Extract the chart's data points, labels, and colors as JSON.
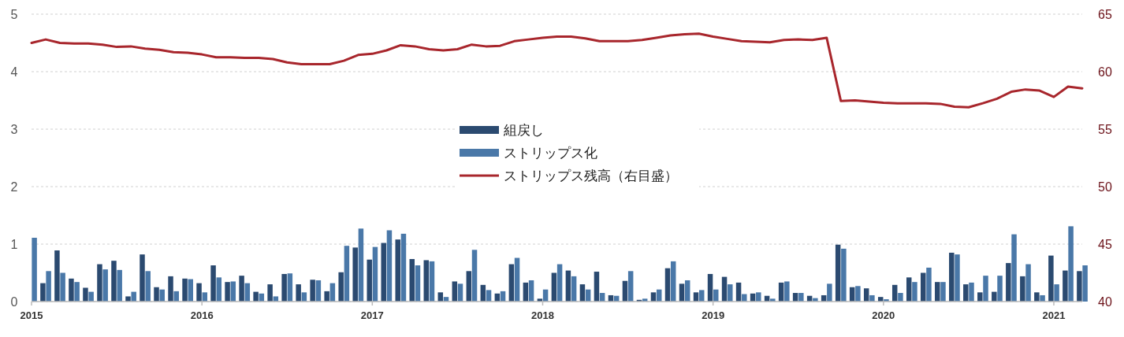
{
  "chart_data": {
    "type": "bar",
    "x": [
      "2015-01",
      "2015-02",
      "2015-03",
      "2015-04",
      "2015-05",
      "2015-06",
      "2015-07",
      "2015-08",
      "2015-09",
      "2015-10",
      "2015-11",
      "2015-12",
      "2016-01",
      "2016-02",
      "2016-03",
      "2016-04",
      "2016-05",
      "2016-06",
      "2016-07",
      "2016-08",
      "2016-09",
      "2016-10",
      "2016-11",
      "2016-12",
      "2017-01",
      "2017-02",
      "2017-03",
      "2017-04",
      "2017-05",
      "2017-06",
      "2017-07",
      "2017-08",
      "2017-09",
      "2017-10",
      "2017-11",
      "2017-12",
      "2018-01",
      "2018-02",
      "2018-03",
      "2018-04",
      "2018-05",
      "2018-06",
      "2018-07",
      "2018-08",
      "2018-09",
      "2018-10",
      "2018-11",
      "2018-12",
      "2019-01",
      "2019-02",
      "2019-03",
      "2019-04",
      "2019-05",
      "2019-06",
      "2019-07",
      "2019-08",
      "2019-09",
      "2019-10",
      "2019-11",
      "2019-12",
      "2020-01",
      "2020-02",
      "2020-03",
      "2020-04",
      "2020-05",
      "2020-06",
      "2020-07",
      "2020-08",
      "2020-09",
      "2020-10",
      "2020-11",
      "2020-12",
      "2021-01",
      "2021-02",
      "2021-03"
    ],
    "series": [
      {
        "name": "組戻し",
        "color": "#2b4a70",
        "values": [
          null,
          0.32,
          0.89,
          0.4,
          0.24,
          0.65,
          0.71,
          0.09,
          0.82,
          0.25,
          0.44,
          0.4,
          0.32,
          0.63,
          0.34,
          0.45,
          0.17,
          0.3,
          0.48,
          0.3,
          0.38,
          0.18,
          0.51,
          0.94,
          0.73,
          1.02,
          1.08,
          0.74,
          0.72,
          0.16,
          0.35,
          0.53,
          0.29,
          0.14,
          0.65,
          0.33,
          0.05,
          0.5,
          0.54,
          0.3,
          0.52,
          0.11,
          0.36,
          0.03,
          0.16,
          0.58,
          0.31,
          0.16,
          0.48,
          0.43,
          0.33,
          0.14,
          0.1,
          0.33,
          0.15,
          0.1,
          0.11,
          0.99,
          0.25,
          0.23,
          0.08,
          0.29,
          0.42,
          0.5,
          0.34,
          0.85,
          0.3,
          0.16,
          0.17,
          0.67,
          0.44,
          0.16,
          0.8,
          0.54,
          0.53
        ]
      },
      {
        "name": "ストリップス化",
        "color": "#4a78a8",
        "values": [
          1.11,
          0.53,
          0.5,
          0.34,
          0.17,
          0.56,
          0.55,
          0.17,
          0.53,
          0.21,
          0.18,
          0.39,
          0.16,
          0.42,
          0.35,
          0.32,
          0.14,
          0.09,
          0.49,
          0.16,
          0.37,
          0.32,
          0.97,
          1.27,
          0.95,
          1.24,
          1.18,
          0.63,
          0.7,
          0.08,
          0.31,
          0.9,
          0.2,
          0.18,
          0.76,
          0.37,
          0.21,
          0.65,
          0.44,
          0.21,
          0.15,
          0.1,
          0.53,
          0.05,
          0.21,
          0.7,
          0.37,
          0.2,
          0.21,
          0.3,
          0.13,
          0.16,
          0.05,
          0.35,
          0.15,
          0.06,
          0.31,
          0.92,
          0.27,
          0.11,
          0.04,
          0.15,
          0.34,
          0.59,
          0.34,
          0.82,
          0.33,
          0.45,
          0.45,
          1.17,
          0.65,
          0.11,
          0.3,
          1.31,
          0.63
        ]
      },
      {
        "name": "ストリップス残高（右目盛）",
        "type": "line",
        "axis": "y2",
        "color": "#a8262c",
        "values": [
          62.5,
          62.8,
          62.5,
          62.45,
          62.45,
          62.35,
          62.15,
          62.2,
          62.0,
          61.9,
          61.7,
          61.65,
          61.5,
          61.25,
          61.25,
          61.2,
          61.2,
          61.1,
          60.8,
          60.65,
          60.65,
          60.65,
          60.95,
          61.45,
          61.55,
          61.85,
          62.3,
          62.2,
          61.95,
          61.85,
          61.95,
          62.35,
          62.2,
          62.25,
          62.65,
          62.8,
          62.95,
          63.05,
          63.05,
          62.9,
          62.65,
          62.65,
          62.65,
          62.75,
          62.95,
          63.15,
          63.25,
          63.3,
          63.05,
          62.85,
          62.65,
          62.6,
          62.55,
          62.75,
          62.8,
          62.75,
          62.95,
          57.45,
          57.5,
          57.4,
          57.3,
          57.25,
          57.25,
          57.25,
          57.2,
          56.95,
          56.9,
          57.25,
          57.65,
          58.25,
          58.45,
          58.35,
          57.8,
          58.7,
          58.55
        ]
      }
    ],
    "xlim": [
      "2015-01",
      "2021-03"
    ],
    "xticks": [
      "2015",
      "2016",
      "2017",
      "2018",
      "2019",
      "2020",
      "2021"
    ],
    "ylim": [
      0,
      5
    ],
    "yticks": [
      0,
      1,
      2,
      3,
      4,
      5
    ],
    "y2lim": [
      40,
      65
    ],
    "y2ticks": [
      40,
      45,
      50,
      55,
      60,
      65
    ],
    "grid": "y",
    "legend": "center",
    "marker": "none",
    "line_style": "solid"
  }
}
